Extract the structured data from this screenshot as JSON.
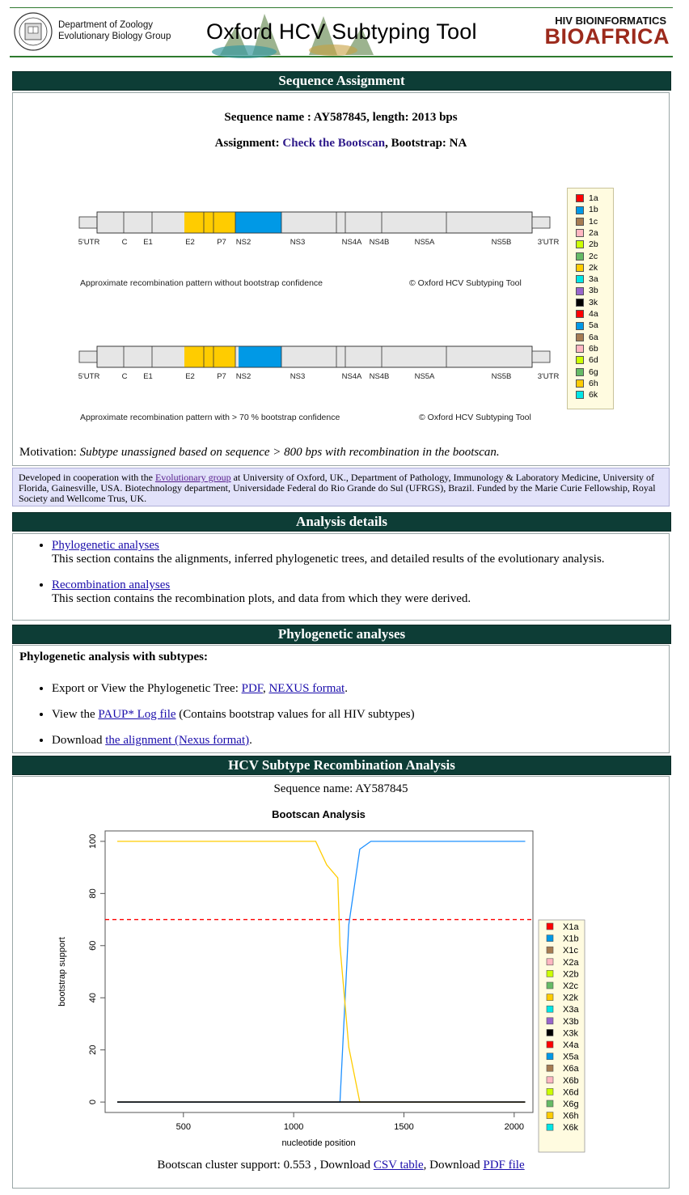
{
  "header": {
    "dept_line1": "Department of Zoology",
    "dept_line2": "Evolutionary Biology Group",
    "tool_title": "Oxford HCV Subtyping Tool",
    "bio_small": "HIV BIOINFORMATICS",
    "bio_big": "BIOAFRICA"
  },
  "assignment": {
    "bar_title": "Sequence Assignment",
    "seq_line": "Sequence name : AY587845, length: 2013 bps",
    "assign_label": "Assignment: ",
    "assign_value": "Check the Bootscan",
    "bootstrap_text": ", Bootstrap: NA",
    "gene_labels": [
      "5'UTR",
      "C",
      "E1",
      "E2",
      "P7",
      "NS2",
      "NS3",
      "NS4A",
      "NS4B",
      "NS5A",
      "NS5B",
      "3'UTR"
    ],
    "caption1": "Approximate recombination pattern without bootstrap confidence",
    "caption2": "Approximate recombination pattern with > 70 % bootstrap confidence",
    "copyright": "© Oxford HCV Subtyping Tool",
    "legend": [
      {
        "label": "1a",
        "color": "#ff0000"
      },
      {
        "label": "1b",
        "color": "#0099e6"
      },
      {
        "label": "1c",
        "color": "#a67c52"
      },
      {
        "label": "2a",
        "color": "#ffb6c1"
      },
      {
        "label": "2b",
        "color": "#ccff00"
      },
      {
        "label": "2c",
        "color": "#66bb66"
      },
      {
        "label": "2k",
        "color": "#ffcc00"
      },
      {
        "label": "3a",
        "color": "#00e6e6"
      },
      {
        "label": "3b",
        "color": "#9966cc"
      },
      {
        "label": "3k",
        "color": "#000000"
      },
      {
        "label": "4a",
        "color": "#ff0000"
      },
      {
        "label": "5a",
        "color": "#0099e6"
      },
      {
        "label": "6a",
        "color": "#a67c52"
      },
      {
        "label": "6b",
        "color": "#ffb6c1"
      },
      {
        "label": "6d",
        "color": "#ccff00"
      },
      {
        "label": "6g",
        "color": "#66bb66"
      },
      {
        "label": "6h",
        "color": "#ffcc00"
      },
      {
        "label": "6k",
        "color": "#00e6e6"
      }
    ],
    "motivation_label": "Motivation: ",
    "motivation_text": "Subtype unassigned based on sequence > 800 bps with recombination in the bootscan."
  },
  "cooperation": {
    "pre": "Developed in cooperation with the ",
    "link": "Evolutionary group",
    "post": " at University of Oxford, UK., Department of Pathology, Immunology & Laboratory Medicine, University of Florida, Gainesville, USA. Biotechnology department, Universidade Federal do Rio Grande do Sul (UFRGS), Brazil. Funded by the Marie Curie Fellowship, Royal Society and Wellcome Trus, UK."
  },
  "analysis": {
    "bar_title": "Analysis details",
    "items": [
      {
        "link": "Phylogenetic analyses",
        "desc": "This section contains the alignments, inferred phylogenetic trees, and detailed results of the evolutionary analysis."
      },
      {
        "link": "Recombination analyses",
        "desc": "This section contains the recombination plots, and data from which they were derived."
      }
    ]
  },
  "phylo": {
    "bar_title": "Phylogenetic analyses",
    "heading": "Phylogenetic analysis with subtypes:",
    "item1_pre": "Export or View the Phylogenetic Tree: ",
    "item1_link1": "PDF",
    "item1_sep": ", ",
    "item1_link2": "NEXUS format",
    "item1_post": ".",
    "item2_pre": "View the ",
    "item2_link": "PAUP* Log file",
    "item2_post": " (Contains bootstrap values for all HIV subtypes)",
    "item3_pre": "Download ",
    "item3_link": "the alignment (Nexus format)",
    "item3_post": "."
  },
  "recomb": {
    "bar_title": "HCV Subtype Recombination Analysis",
    "seq_line": "Sequence name: AY587845",
    "footer_pre": "Bootscan cluster support: 0.553 , Download ",
    "footer_link1": "CSV table",
    "footer_mid": ", Download ",
    "footer_link2": "PDF file"
  },
  "chart_data": {
    "type": "line",
    "title": "Bootscan Analysis",
    "xlabel": "nucleotide position",
    "ylabel": "bootstrap support",
    "xlim": [
      145,
      2085
    ],
    "ylim": [
      -4,
      104
    ],
    "xticks": [
      500,
      1000,
      1500,
      2000
    ],
    "yticks": [
      0,
      20,
      40,
      60,
      80,
      100
    ],
    "threshold": 70,
    "series": [
      {
        "name": "X1b",
        "color": "#1e90ff",
        "x": [
          200,
          1100,
          1200,
          1210,
          1250,
          1300,
          1350,
          2050
        ],
        "y": [
          0,
          0,
          0,
          0,
          68,
          97,
          100,
          100
        ]
      },
      {
        "name": "X2k",
        "color": "#ffcc00",
        "x": [
          200,
          1100,
          1150,
          1200,
          1210,
          1250,
          1300,
          1350,
          2050
        ],
        "y": [
          100,
          100,
          91,
          86,
          60,
          21,
          0,
          0,
          0
        ]
      },
      {
        "name": "X3k",
        "color": "#000000",
        "x": [
          200,
          2050
        ],
        "y": [
          0,
          0
        ]
      }
    ],
    "legend": [
      {
        "label": "X1a",
        "color": "#ff0000"
      },
      {
        "label": "X1b",
        "color": "#0099e6"
      },
      {
        "label": "X1c",
        "color": "#a67c52"
      },
      {
        "label": "X2a",
        "color": "#ffb6c1"
      },
      {
        "label": "X2b",
        "color": "#ccff00"
      },
      {
        "label": "X2c",
        "color": "#66bb66"
      },
      {
        "label": "X2k",
        "color": "#ffcc00"
      },
      {
        "label": "X3a",
        "color": "#00e6e6"
      },
      {
        "label": "X3b",
        "color": "#9966cc"
      },
      {
        "label": "X3k",
        "color": "#000000"
      },
      {
        "label": "X4a",
        "color": "#ff0000"
      },
      {
        "label": "X5a",
        "color": "#0099e6"
      },
      {
        "label": "X6a",
        "color": "#a67c52"
      },
      {
        "label": "X6b",
        "color": "#ffb6c1"
      },
      {
        "label": "X6d",
        "color": "#ccff00"
      },
      {
        "label": "X6g",
        "color": "#66bb66"
      },
      {
        "label": "X6h",
        "color": "#ffcc00"
      },
      {
        "label": "X6k",
        "color": "#00e6e6"
      }
    ],
    "legend_position": "right"
  }
}
